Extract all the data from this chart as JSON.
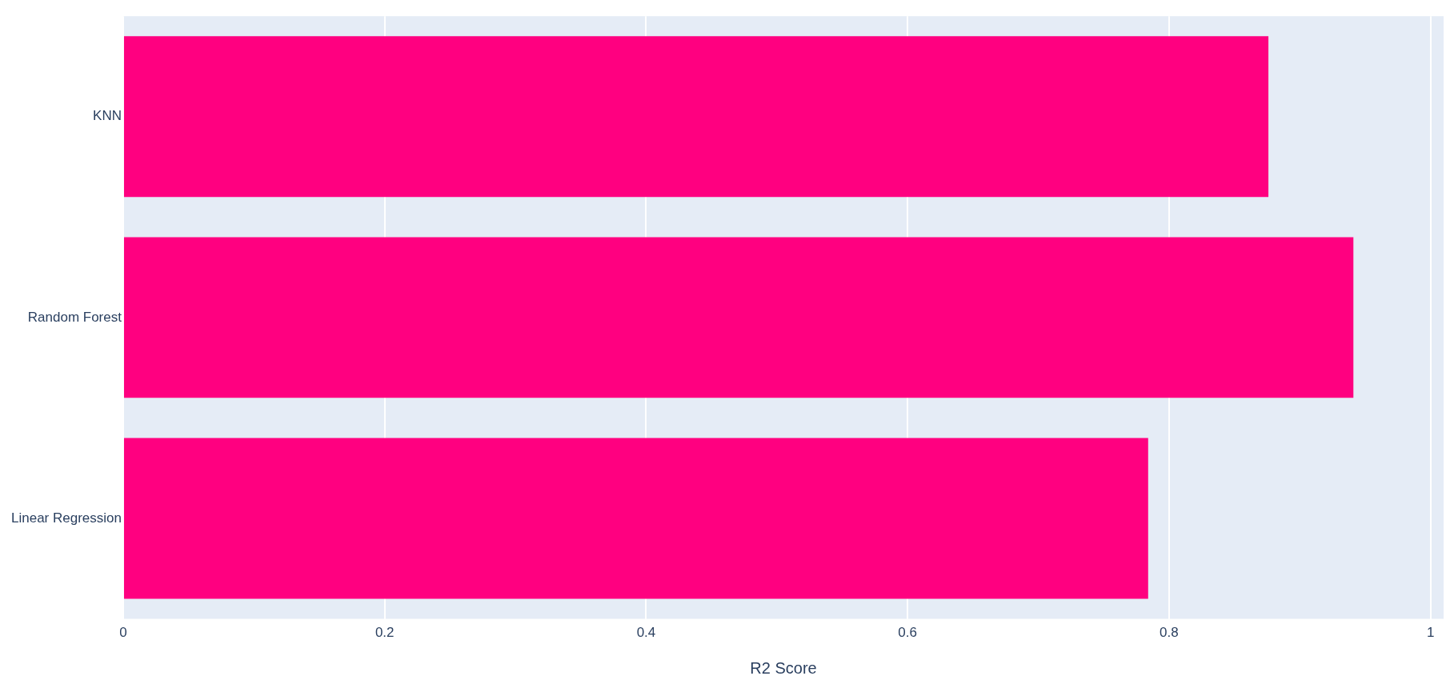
{
  "chart_data": {
    "type": "bar",
    "orientation": "horizontal",
    "xlabel": "R2 Score",
    "categories": [
      "KNN",
      "Random Forest",
      "Linear Regression"
    ],
    "values": [
      0.876,
      0.941,
      0.784
    ],
    "color": "#ff0080",
    "xlim": [
      0,
      1.01
    ],
    "xticks": [
      0,
      0.2,
      0.4,
      0.6,
      0.8,
      1
    ],
    "grid": "x"
  }
}
